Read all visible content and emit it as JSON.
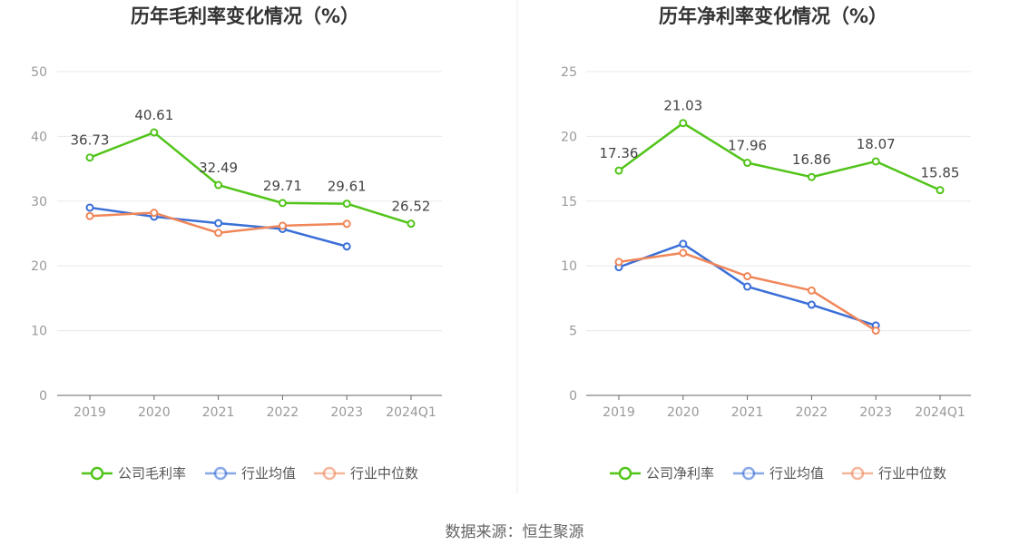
{
  "source_text": "数据来源：恒生聚源",
  "chart_data": [
    {
      "type": "line",
      "title": "历年毛利率变化情况（%）",
      "categories": [
        "2019",
        "2020",
        "2021",
        "2022",
        "2023",
        "2024Q1"
      ],
      "ylim": [
        0,
        50
      ],
      "yticks": [
        "0",
        "10",
        "20",
        "30",
        "40",
        "50"
      ],
      "grid": true,
      "legend": "bottom",
      "series": [
        {
          "name": "公司毛利率",
          "color": "#52c41a",
          "values": [
            36.73,
            40.61,
            32.49,
            29.71,
            29.61,
            26.52
          ],
          "labels": [
            "36.73",
            "40.61",
            "32.49",
            "29.71",
            "29.61",
            "26.52"
          ]
        },
        {
          "name": "行业均值",
          "color": "#3a6fd8",
          "values": [
            29.0,
            27.6,
            26.6,
            25.7,
            23.0,
            null
          ]
        },
        {
          "name": "行业中位数",
          "color": "#f0875a",
          "values": [
            27.7,
            28.2,
            25.1,
            26.2,
            26.5,
            null
          ]
        }
      ]
    },
    {
      "type": "line",
      "title": "历年净利率变化情况（%）",
      "categories": [
        "2019",
        "2020",
        "2021",
        "2022",
        "2023",
        "2024Q1"
      ],
      "ylim": [
        0,
        25
      ],
      "yticks": [
        "0",
        "5",
        "10",
        "15",
        "20",
        "25"
      ],
      "grid": true,
      "legend": "bottom",
      "series": [
        {
          "name": "公司净利率",
          "color": "#52c41a",
          "values": [
            17.36,
            21.03,
            17.96,
            16.86,
            18.07,
            15.85
          ],
          "labels": [
            "17.36",
            "21.03",
            "17.96",
            "16.86",
            "18.07",
            "15.85"
          ]
        },
        {
          "name": "行业均值",
          "color": "#3a6fd8",
          "values": [
            9.9,
            11.7,
            8.4,
            7.0,
            5.4,
            null
          ]
        },
        {
          "name": "行业中位数",
          "color": "#f0875a",
          "values": [
            10.3,
            11.0,
            9.2,
            8.1,
            5.0,
            null
          ]
        }
      ]
    }
  ]
}
